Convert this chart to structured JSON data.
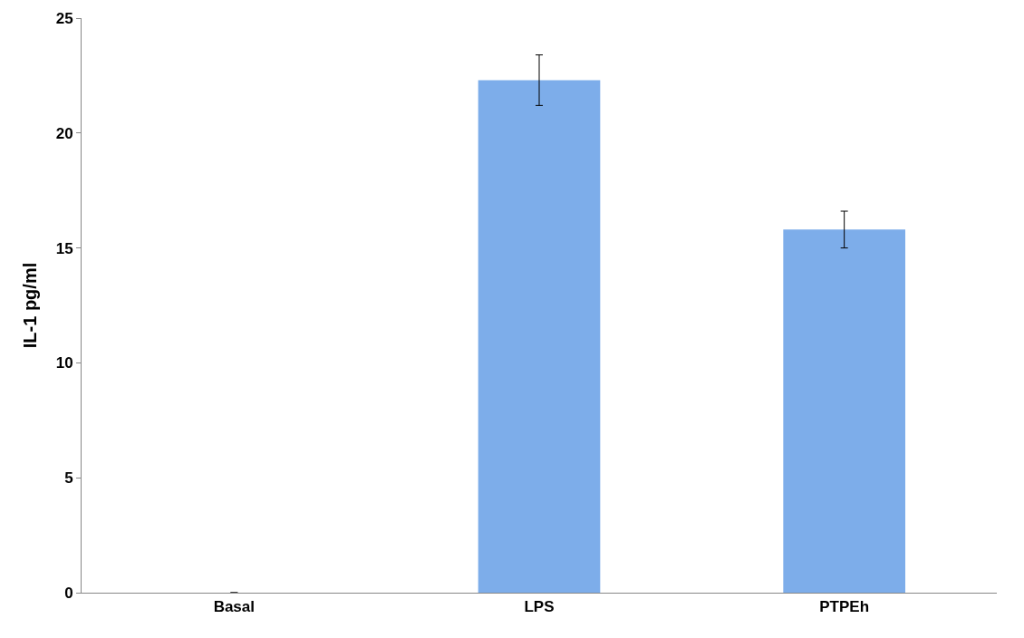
{
  "chart_data": {
    "type": "bar",
    "ylabel": "IL-1 pg/ml",
    "categories": [
      "Basal",
      "LPS",
      "PTPEh"
    ],
    "values": [
      0,
      22.3,
      15.8
    ],
    "errors": [
      null,
      1.1,
      0.8
    ],
    "color": "#7dadea",
    "ylim": [
      0,
      25
    ],
    "yticks": [
      0,
      5,
      10,
      15,
      20,
      25
    ],
    "legend": false
  }
}
